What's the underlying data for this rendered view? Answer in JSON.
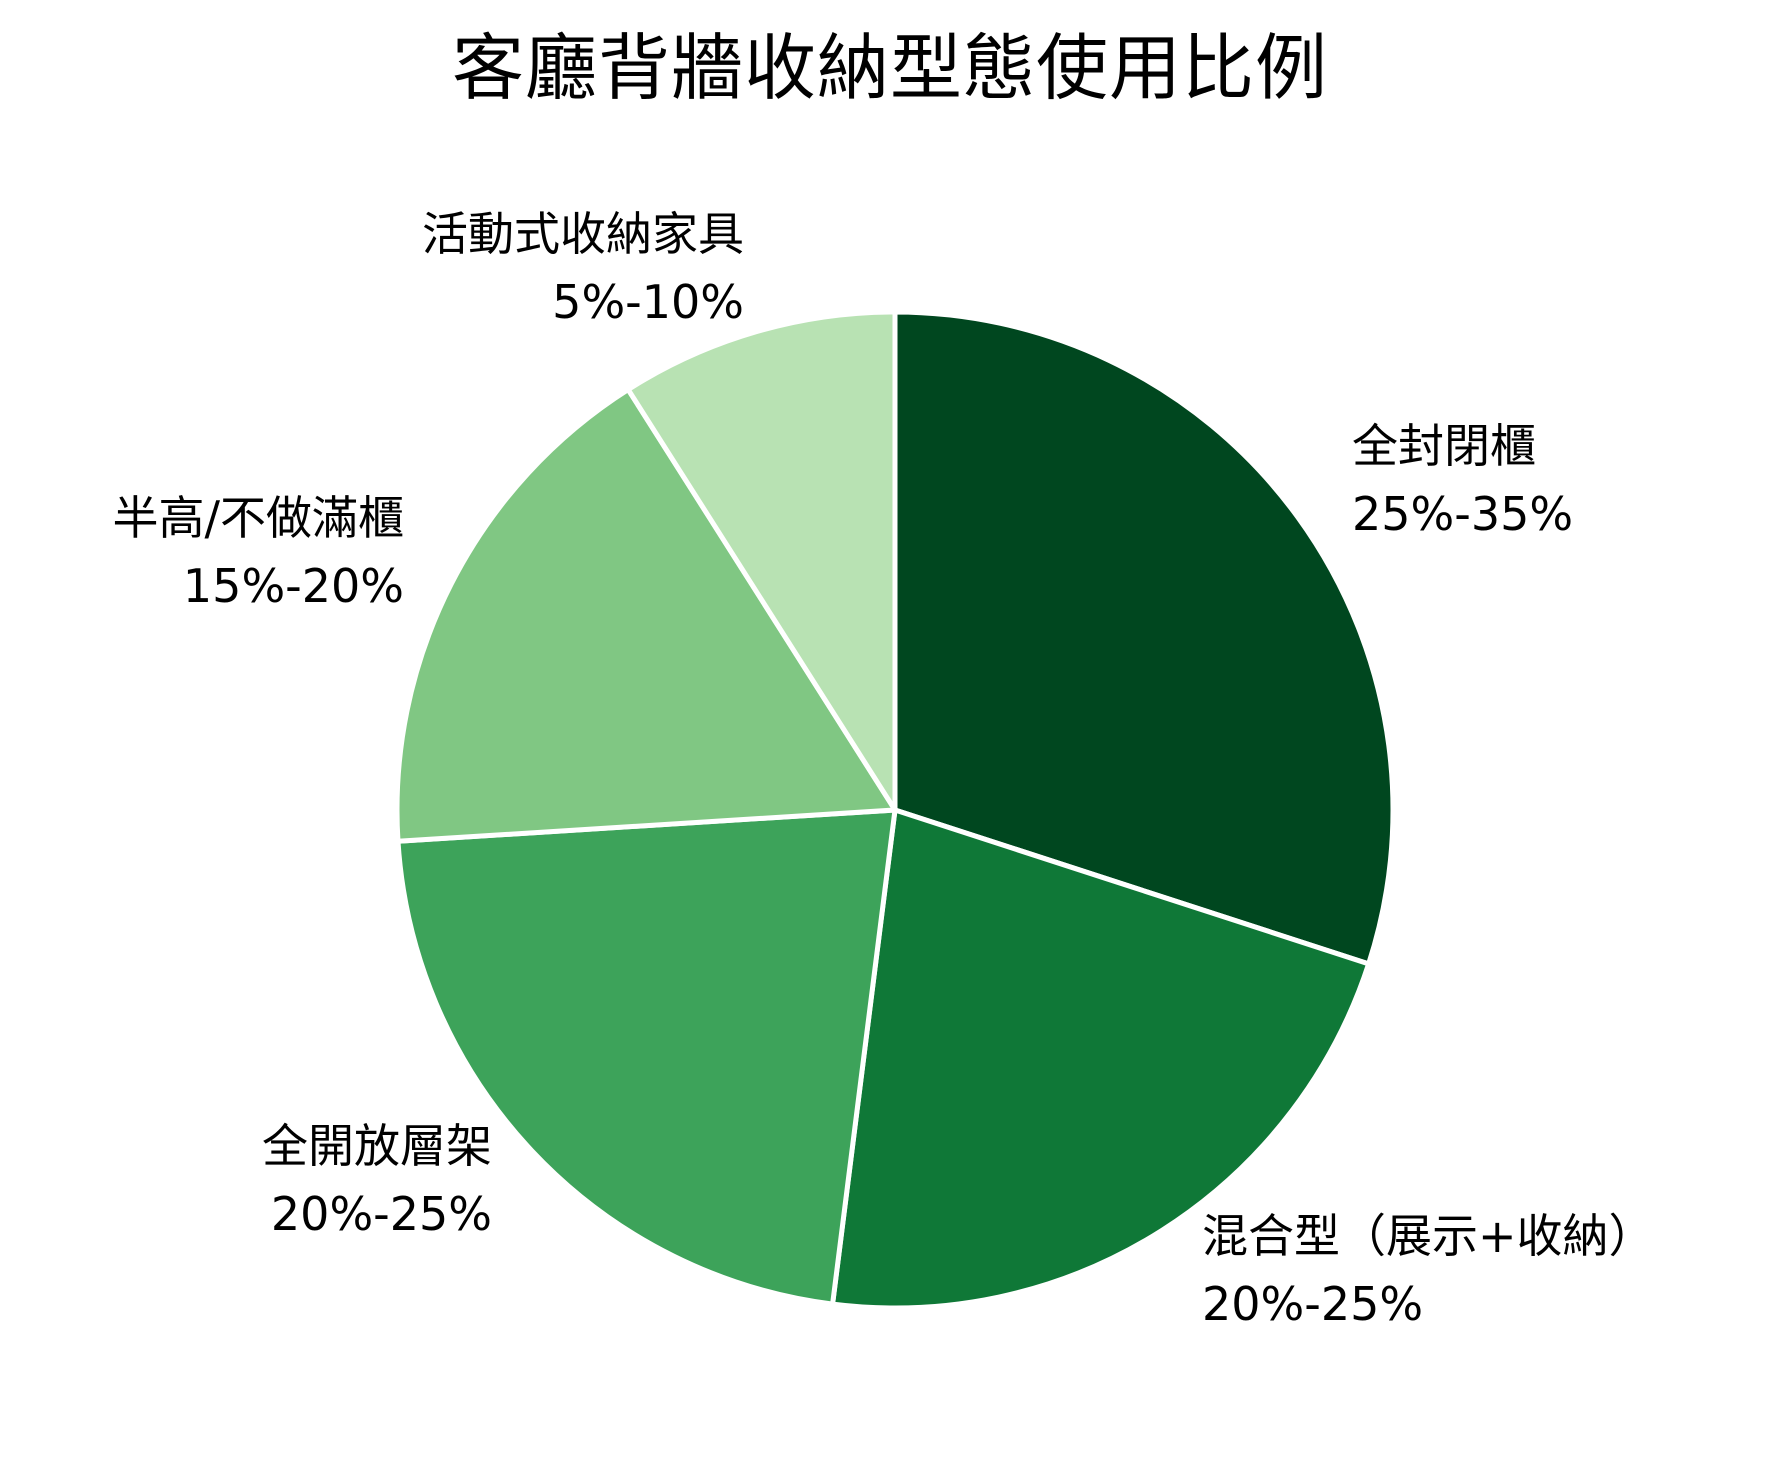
{
  "chart_data": {
    "type": "pie",
    "title": "客廳背牆收納型態使用比例",
    "start_angle_deg": 0,
    "direction": "clockwise",
    "slices": [
      {
        "label": "全封閉櫃",
        "range": "25%-35%",
        "value": 30,
        "color": "#00471F"
      },
      {
        "label": "混合型（展示+收納）",
        "range": "20%-25%",
        "value": 22,
        "color": "#0F7837"
      },
      {
        "label": "全開放層架",
        "range": "20%-25%",
        "value": 22,
        "color": "#3DA35A"
      },
      {
        "label": "半高/不做滿櫃",
        "range": "15%-20%",
        "value": 17,
        "color": "#80C783"
      },
      {
        "label": "活動式收納家具",
        "range": "5%-10%",
        "value": 9,
        "color": "#B8E2B3"
      }
    ],
    "legend": "none",
    "label_style": "outside, name + range on two lines"
  },
  "title": "客廳背牆收納型態使用比例",
  "labels": [
    {
      "name": "全封閉櫃",
      "range": "25%-35%"
    },
    {
      "name": "混合型（展示+收納）",
      "range": "20%-25%"
    },
    {
      "name": "全開放層架",
      "range": "20%-25%"
    },
    {
      "name": "半高/不做滿櫃",
      "range": "15%-20%"
    },
    {
      "name": "活動式收納家具",
      "range": "5%-10%"
    }
  ]
}
